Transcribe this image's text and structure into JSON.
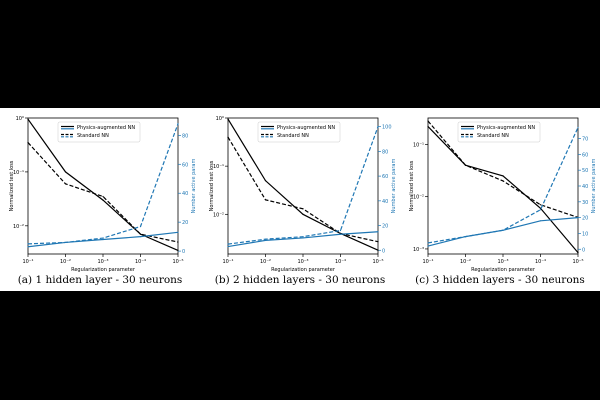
{
  "colors": {
    "black": "#000000",
    "blue": "#1f77b4"
  },
  "chart_data": [
    {
      "type": "line",
      "caption": "(a) 1 hidden layer - 30 neurons",
      "xlabel": "Regularization parameter",
      "ylabel_left": "Normalized test loss",
      "ylabel_right": "Number active param",
      "x_scale": "log",
      "x": [
        0.1,
        0.01,
        0.001,
        0.0001,
        1e-05
      ],
      "x_ticks": [
        "10⁻¹",
        "10⁻²",
        "10⁻³",
        "10⁻⁴",
        "10⁻⁵"
      ],
      "y_left_scale": "log",
      "y_left_lim": [
        0.003,
        1.0
      ],
      "y_left_ticks": [
        {
          "v": 1,
          "t": "10⁰"
        },
        {
          "v": 0.1,
          "t": "10⁻¹"
        },
        {
          "v": 0.01,
          "t": "10⁻²"
        }
      ],
      "y_right_lim": [
        -2,
        92
      ],
      "y_right_ticks": [
        0,
        20,
        40,
        60,
        80
      ],
      "legend": [
        "Physics-augmented NN",
        "Standard NN"
      ],
      "series": [
        {
          "name": "Physics-augmented NN",
          "axis": "left",
          "color": "black",
          "dash": false,
          "values": [
            0.95,
            0.1,
            0.03,
            0.007,
            0.0035
          ]
        },
        {
          "name": "Standard NN",
          "axis": "left",
          "color": "black",
          "dash": true,
          "values": [
            0.35,
            0.06,
            0.035,
            0.007,
            0.005
          ]
        },
        {
          "name": "Physics-augmented NN",
          "axis": "right",
          "color": "blue",
          "dash": false,
          "values": [
            3,
            6,
            8,
            10,
            13
          ]
        },
        {
          "name": "Standard NN",
          "axis": "right",
          "color": "blue",
          "dash": true,
          "values": [
            5,
            6,
            9,
            17,
            88
          ]
        }
      ]
    },
    {
      "type": "line",
      "caption": "(b) 2 hidden layers - 30 neurons",
      "xlabel": "Regularization parameter",
      "ylabel_left": "Normalized test loss",
      "ylabel_right": "Number active param",
      "x_scale": "log",
      "x": [
        0.1,
        0.01,
        0.001,
        0.0001,
        1e-05
      ],
      "x_ticks": [
        "10⁻¹",
        "10⁻²",
        "10⁻³",
        "10⁻⁴",
        "10⁻⁵"
      ],
      "y_left_scale": "log",
      "y_left_lim": [
        0.0015,
        1.0
      ],
      "y_left_ticks": [
        {
          "v": 1,
          "t": "10⁰"
        },
        {
          "v": 0.1,
          "t": "10⁻¹"
        },
        {
          "v": 0.01,
          "t": "10⁻²"
        }
      ],
      "y_right_lim": [
        -3,
        107
      ],
      "y_right_ticks": [
        0,
        20,
        40,
        60,
        80,
        100
      ],
      "legend": [
        "Physics-augmented NN",
        "Standard NN"
      ],
      "series": [
        {
          "name": "Physics-augmented NN",
          "axis": "left",
          "color": "black",
          "dash": false,
          "values": [
            0.95,
            0.05,
            0.01,
            0.004,
            0.0018
          ]
        },
        {
          "name": "Standard NN",
          "axis": "left",
          "color": "black",
          "dash": true,
          "values": [
            0.4,
            0.02,
            0.013,
            0.004,
            0.0027
          ]
        },
        {
          "name": "Physics-augmented NN",
          "axis": "right",
          "color": "blue",
          "dash": false,
          "values": [
            3,
            8,
            10,
            13,
            15
          ]
        },
        {
          "name": "Standard NN",
          "axis": "right",
          "color": "blue",
          "dash": true,
          "values": [
            5,
            9,
            11,
            16,
            100
          ]
        }
      ]
    },
    {
      "type": "line",
      "caption": "(c) 3 hidden layers - 30 neurons",
      "xlabel": "Regularization parameter",
      "ylabel_left": "Normalized test loss",
      "ylabel_right": "Number active param",
      "x_scale": "log",
      "x": [
        0.1,
        0.01,
        0.001,
        0.0001,
        1e-05
      ],
      "x_ticks": [
        "10⁻¹",
        "10⁻²",
        "10⁻³",
        "10⁻⁴",
        "10⁻⁵"
      ],
      "y_left_scale": "log",
      "y_left_lim": [
        0.0008,
        0.32
      ],
      "y_left_ticks": [
        {
          "v": 0.1,
          "t": "10⁻¹"
        },
        {
          "v": 0.01,
          "t": "10⁻²"
        },
        {
          "v": 0.001,
          "t": "10⁻³"
        }
      ],
      "y_right_lim": [
        -3,
        83
      ],
      "y_right_ticks": [
        0,
        10,
        20,
        30,
        40,
        50,
        60,
        70
      ],
      "legend": [
        "Physics-augmented NN",
        "Standard NN"
      ],
      "series": [
        {
          "name": "Physics-augmented NN",
          "axis": "left",
          "color": "black",
          "dash": false,
          "values": [
            0.22,
            0.04,
            0.025,
            0.006,
            0.00085
          ]
        },
        {
          "name": "Standard NN",
          "axis": "left",
          "color": "black",
          "dash": true,
          "values": [
            0.28,
            0.04,
            0.02,
            0.007,
            0.004
          ]
        },
        {
          "name": "Physics-augmented NN",
          "axis": "right",
          "color": "blue",
          "dash": false,
          "values": [
            2,
            8,
            12,
            18,
            20
          ]
        },
        {
          "name": "Standard NN",
          "axis": "right",
          "color": "blue",
          "dash": true,
          "values": [
            4,
            8,
            12,
            25,
            77
          ]
        }
      ]
    }
  ]
}
